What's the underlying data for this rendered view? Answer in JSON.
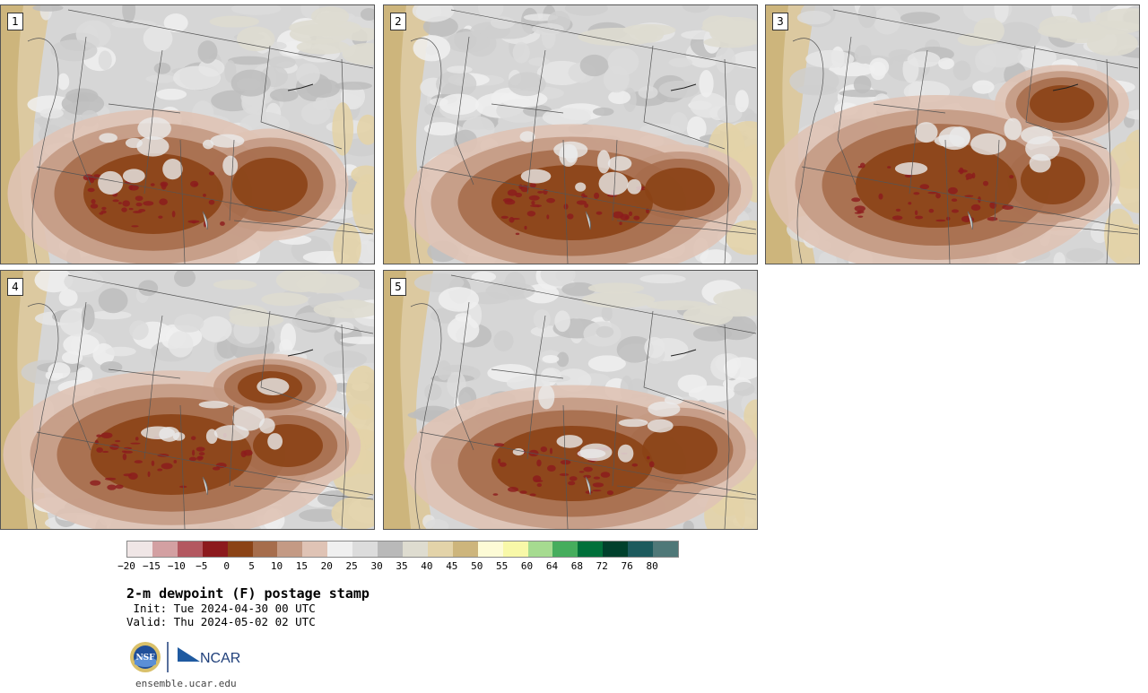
{
  "panels": [
    {
      "label": "1",
      "variant": "a"
    },
    {
      "label": "2",
      "variant": "b"
    },
    {
      "label": "3",
      "variant": "c"
    },
    {
      "label": "4",
      "variant": "d"
    },
    {
      "label": "5",
      "variant": "e"
    }
  ],
  "colorbar": {
    "colors": [
      "#f0e6e6",
      "#d3a0a2",
      "#b35860",
      "#8c1a1d",
      "#8b4316",
      "#a66d4c",
      "#c49a84",
      "#dfc3b5",
      "#f0f0f0",
      "#dcdcdc",
      "#b9b9b9",
      "#dedcd0",
      "#e3d3a9",
      "#cdb57c",
      "#fdfbd6",
      "#f8f8a8",
      "#a6db90",
      "#46ad5d",
      "#00703a",
      "#00402c",
      "#1c5a5d",
      "#4f7878"
    ],
    "ticks": [
      "−20",
      "−15",
      "−10",
      "−5",
      "0",
      "5",
      "10",
      "15",
      "20",
      "25",
      "30",
      "35",
      "40",
      "45",
      "50",
      "55",
      "60",
      "64",
      "68",
      "72",
      "76",
      "80"
    ]
  },
  "info": {
    "title": "2-m dewpoint (F) postage stamp",
    "init": " Init: Tue 2024-04-30 00 UTC",
    "valid": "Valid: Thu 2024-05-02 02 UTC",
    "url": "ensemble.ucar.edu",
    "logo_nsf": "NSF",
    "logo_ncar": "NCAR"
  }
}
